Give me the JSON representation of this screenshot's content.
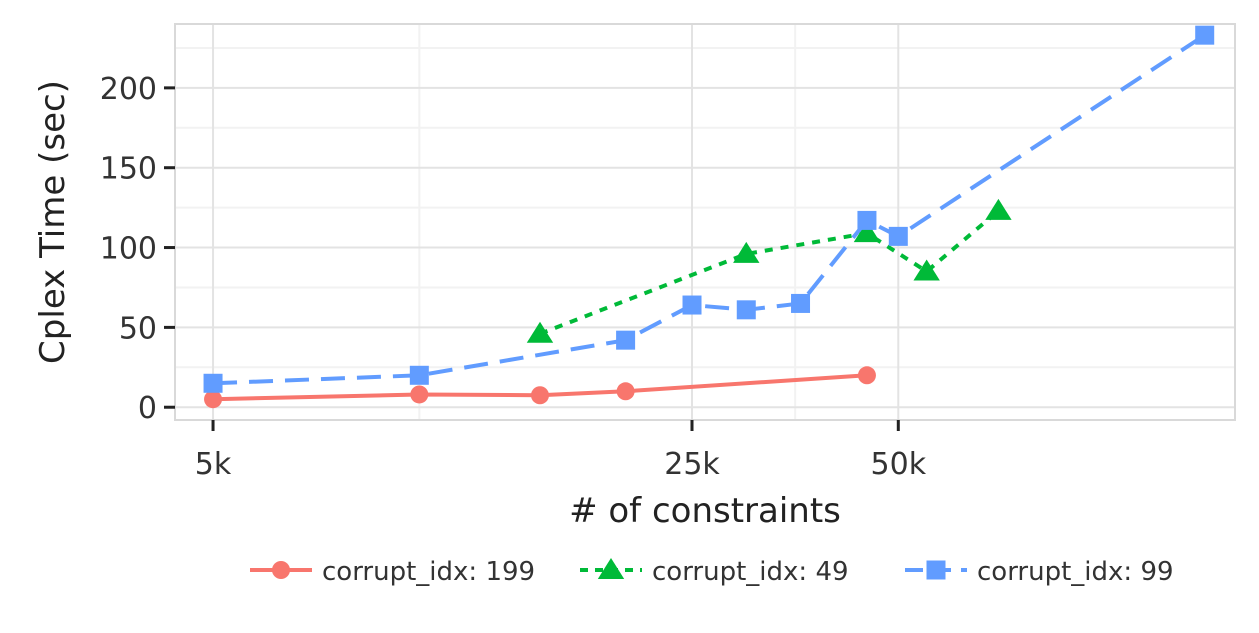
{
  "chart_data": {
    "type": "line",
    "title": "",
    "xlabel": "# of constraints",
    "ylabel": "Cplex Time (sec)",
    "x_scale": "log",
    "xlim": [
      4400,
      155000
    ],
    "ylim": [
      -8,
      240
    ],
    "x_ticks": [
      {
        "value": 5000,
        "label": "5k"
      },
      {
        "value": 25000,
        "label": "25k"
      },
      {
        "value": 50000,
        "label": "50k"
      }
    ],
    "y_ticks": [
      {
        "value": 0,
        "label": "0"
      },
      {
        "value": 50,
        "label": "50"
      },
      {
        "value": 100,
        "label": "100"
      },
      {
        "value": 150,
        "label": "150"
      },
      {
        "value": 200,
        "label": "200"
      }
    ],
    "x_minor_gridlines": [
      10000,
      35355
    ],
    "y_minor_gridlines": [
      25,
      75,
      125,
      175,
      225
    ],
    "grid": true,
    "legend_position": "bottom",
    "series": [
      {
        "name": "corrupt_idx: 199",
        "color": "#F8766D",
        "marker": "circle",
        "dash": "solid",
        "points": [
          {
            "x": 5000,
            "y": 5
          },
          {
            "x": 10000,
            "y": 8
          },
          {
            "x": 15000,
            "y": 7.5
          },
          {
            "x": 20000,
            "y": 10
          },
          {
            "x": 45000,
            "y": 20
          }
        ]
      },
      {
        "name": "corrupt_idx: 49",
        "color": "#00BA38",
        "marker": "triangle",
        "dash": "dotted",
        "points": [
          {
            "x": 15000,
            "y": 46
          },
          {
            "x": 30000,
            "y": 96
          },
          {
            "x": 45000,
            "y": 109
          },
          {
            "x": 55000,
            "y": 85
          },
          {
            "x": 70000,
            "y": 123
          }
        ]
      },
      {
        "name": "corrupt_idx: 99",
        "color": "#619CFF",
        "marker": "square",
        "dash": "dashed",
        "points": [
          {
            "x": 5000,
            "y": 15
          },
          {
            "x": 10000,
            "y": 20
          },
          {
            "x": 20000,
            "y": 42
          },
          {
            "x": 25000,
            "y": 64
          },
          {
            "x": 30000,
            "y": 61
          },
          {
            "x": 36000,
            "y": 65
          },
          {
            "x": 45000,
            "y": 117
          },
          {
            "x": 50000,
            "y": 107
          },
          {
            "x": 140000,
            "y": 233
          }
        ]
      }
    ]
  }
}
